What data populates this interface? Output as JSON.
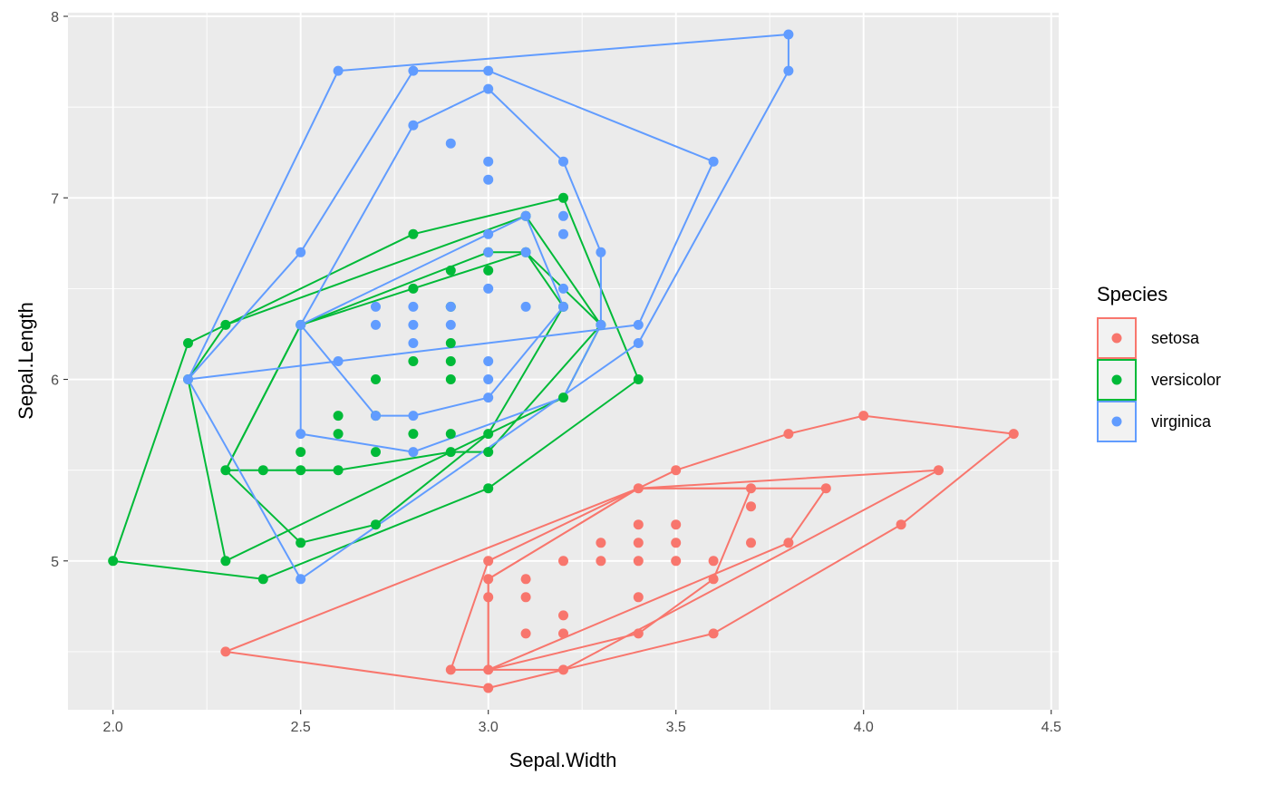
{
  "chart_data": {
    "type": "scatter",
    "title": "",
    "xlabel": "Sepal.Width",
    "ylabel": "Sepal.Length",
    "xlim": [
      1.88,
      4.52
    ],
    "ylim": [
      4.18,
      8.02
    ],
    "x_ticks": [
      2.0,
      2.5,
      3.0,
      3.5,
      4.0,
      4.5
    ],
    "x_tick_labels": [
      "2.0",
      "2.5",
      "3.0",
      "3.5",
      "4.0",
      "4.5"
    ],
    "y_ticks": [
      5,
      6,
      7,
      8
    ],
    "y_tick_labels": [
      "5",
      "6",
      "7",
      "8"
    ],
    "grid": true,
    "legend": {
      "title": "Species",
      "position": "right"
    },
    "series": [
      {
        "name": "setosa",
        "color": "#F8766D",
        "points": [
          [
            2.3,
            4.5
          ],
          [
            2.9,
            4.4
          ],
          [
            3.0,
            4.3
          ],
          [
            3.0,
            4.4
          ],
          [
            3.0,
            4.8
          ],
          [
            3.0,
            4.9
          ],
          [
            3.0,
            5.0
          ],
          [
            3.1,
            4.6
          ],
          [
            3.1,
            4.8
          ],
          [
            3.1,
            4.9
          ],
          [
            3.2,
            4.4
          ],
          [
            3.2,
            4.6
          ],
          [
            3.2,
            4.7
          ],
          [
            3.2,
            5.0
          ],
          [
            3.3,
            5.0
          ],
          [
            3.3,
            5.1
          ],
          [
            3.4,
            4.6
          ],
          [
            3.4,
            4.8
          ],
          [
            3.4,
            5.0
          ],
          [
            3.4,
            5.1
          ],
          [
            3.4,
            5.2
          ],
          [
            3.4,
            5.4
          ],
          [
            3.5,
            5.0
          ],
          [
            3.5,
            5.1
          ],
          [
            3.5,
            5.2
          ],
          [
            3.5,
            5.5
          ],
          [
            3.6,
            4.6
          ],
          [
            3.6,
            4.9
          ],
          [
            3.6,
            5.0
          ],
          [
            3.7,
            5.1
          ],
          [
            3.7,
            5.3
          ],
          [
            3.7,
            5.4
          ],
          [
            3.8,
            5.1
          ],
          [
            3.8,
            5.7
          ],
          [
            3.9,
            5.4
          ],
          [
            4.0,
            5.8
          ],
          [
            4.1,
            5.2
          ],
          [
            4.2,
            5.5
          ],
          [
            4.4,
            5.7
          ]
        ],
        "hulls": [
          [
            [
              2.3,
              4.5
            ],
            [
              3.0,
              4.3
            ],
            [
              3.2,
              4.4
            ],
            [
              3.6,
              4.6
            ],
            [
              4.1,
              5.2
            ],
            [
              4.4,
              5.7
            ],
            [
              4.0,
              5.8
            ],
            [
              3.8,
              5.7
            ],
            [
              3.5,
              5.5
            ],
            [
              3.4,
              5.4
            ]
          ],
          [
            [
              2.9,
              4.4
            ],
            [
              3.2,
              4.4
            ],
            [
              4.2,
              5.5
            ],
            [
              3.4,
              5.4
            ],
            [
              3.0,
              5.0
            ]
          ],
          [
            [
              3.0,
              4.4
            ],
            [
              3.8,
              5.1
            ],
            [
              3.9,
              5.4
            ],
            [
              3.4,
              5.4
            ],
            [
              3.0,
              4.9
            ]
          ],
          [
            [
              3.0,
              4.4
            ],
            [
              3.4,
              4.6
            ],
            [
              3.6,
              4.9
            ],
            [
              3.7,
              5.4
            ],
            [
              3.4,
              5.4
            ],
            [
              3.0,
              4.9
            ]
          ]
        ]
      },
      {
        "name": "versicolor",
        "color": "#00BA38",
        "points": [
          [
            2.0,
            5.0
          ],
          [
            2.2,
            6.0
          ],
          [
            2.2,
            6.2
          ],
          [
            2.3,
            5.0
          ],
          [
            2.3,
            5.5
          ],
          [
            2.3,
            6.3
          ],
          [
            2.4,
            4.9
          ],
          [
            2.4,
            5.5
          ],
          [
            2.5,
            5.1
          ],
          [
            2.5,
            5.5
          ],
          [
            2.5,
            5.6
          ],
          [
            2.5,
            6.3
          ],
          [
            2.6,
            5.5
          ],
          [
            2.6,
            5.7
          ],
          [
            2.6,
            5.8
          ],
          [
            2.7,
            5.2
          ],
          [
            2.7,
            5.6
          ],
          [
            2.7,
            5.8
          ],
          [
            2.7,
            6.0
          ],
          [
            2.8,
            5.7
          ],
          [
            2.8,
            6.1
          ],
          [
            2.8,
            6.5
          ],
          [
            2.8,
            6.8
          ],
          [
            2.9,
            5.6
          ],
          [
            2.9,
            5.7
          ],
          [
            2.9,
            6.0
          ],
          [
            2.9,
            6.1
          ],
          [
            2.9,
            6.2
          ],
          [
            2.9,
            6.4
          ],
          [
            2.9,
            6.6
          ],
          [
            3.0,
            5.4
          ],
          [
            3.0,
            5.6
          ],
          [
            3.0,
            5.7
          ],
          [
            3.0,
            6.6
          ],
          [
            3.0,
            6.7
          ],
          [
            3.1,
            6.7
          ],
          [
            3.1,
            6.9
          ],
          [
            3.2,
            5.9
          ],
          [
            3.2,
            6.4
          ],
          [
            3.2,
            7.0
          ],
          [
            3.3,
            6.3
          ],
          [
            3.4,
            6.0
          ]
        ],
        "hulls": [
          [
            [
              2.0,
              5.0
            ],
            [
              2.4,
              4.9
            ],
            [
              3.0,
              5.4
            ],
            [
              3.4,
              6.0
            ],
            [
              3.2,
              7.0
            ],
            [
              2.8,
              6.8
            ],
            [
              2.2,
              6.2
            ]
          ],
          [
            [
              2.3,
              5.0
            ],
            [
              3.2,
              5.9
            ],
            [
              3.3,
              6.3
            ],
            [
              3.1,
              6.9
            ],
            [
              2.3,
              6.3
            ],
            [
              2.2,
              6.0
            ]
          ],
          [
            [
              2.5,
              5.1
            ],
            [
              2.7,
              5.2
            ],
            [
              3.0,
              5.7
            ],
            [
              3.2,
              6.4
            ],
            [
              3.1,
              6.7
            ],
            [
              2.5,
              6.3
            ],
            [
              2.3,
              5.5
            ]
          ],
          [
            [
              2.3,
              5.5
            ],
            [
              2.6,
              5.5
            ],
            [
              2.9,
              5.6
            ],
            [
              3.0,
              5.6
            ],
            [
              3.3,
              6.3
            ],
            [
              3.1,
              6.7
            ],
            [
              3.0,
              6.7
            ],
            [
              2.5,
              6.3
            ]
          ]
        ]
      },
      {
        "name": "virginica",
        "color": "#619CFF",
        "points": [
          [
            2.2,
            6.0
          ],
          [
            2.5,
            4.9
          ],
          [
            2.5,
            5.7
          ],
          [
            2.5,
            6.3
          ],
          [
            2.5,
            6.7
          ],
          [
            2.6,
            6.1
          ],
          [
            2.6,
            7.7
          ],
          [
            2.7,
            5.8
          ],
          [
            2.7,
            6.3
          ],
          [
            2.7,
            6.4
          ],
          [
            2.8,
            5.6
          ],
          [
            2.8,
            5.8
          ],
          [
            2.8,
            6.2
          ],
          [
            2.8,
            6.3
          ],
          [
            2.8,
            6.4
          ],
          [
            2.8,
            7.4
          ],
          [
            2.8,
            7.7
          ],
          [
            2.9,
            6.3
          ],
          [
            2.9,
            6.4
          ],
          [
            2.9,
            7.3
          ],
          [
            3.0,
            5.9
          ],
          [
            3.0,
            6.0
          ],
          [
            3.0,
            6.1
          ],
          [
            3.0,
            6.5
          ],
          [
            3.0,
            6.7
          ],
          [
            3.0,
            6.8
          ],
          [
            3.0,
            7.1
          ],
          [
            3.0,
            7.2
          ],
          [
            3.0,
            7.6
          ],
          [
            3.0,
            7.7
          ],
          [
            3.1,
            6.4
          ],
          [
            3.1,
            6.7
          ],
          [
            3.1,
            6.9
          ],
          [
            3.2,
            6.4
          ],
          [
            3.2,
            6.5
          ],
          [
            3.2,
            6.8
          ],
          [
            3.2,
            6.9
          ],
          [
            3.2,
            7.2
          ],
          [
            3.3,
            6.3
          ],
          [
            3.3,
            6.7
          ],
          [
            3.4,
            6.2
          ],
          [
            3.4,
            6.3
          ],
          [
            3.6,
            7.2
          ],
          [
            3.8,
            7.7
          ],
          [
            3.8,
            7.9
          ]
        ],
        "hulls": [
          [
            [
              2.2,
              6.0
            ],
            [
              2.5,
              4.9
            ],
            [
              3.4,
              6.2
            ],
            [
              3.8,
              7.7
            ],
            [
              3.8,
              7.9
            ],
            [
              2.6,
              7.7
            ]
          ],
          [
            [
              2.2,
              6.0
            ],
            [
              3.4,
              6.3
            ],
            [
              3.6,
              7.2
            ],
            [
              3.0,
              7.7
            ],
            [
              2.8,
              7.7
            ],
            [
              2.5,
              6.7
            ]
          ],
          [
            [
              2.5,
              5.7
            ],
            [
              2.8,
              5.6
            ],
            [
              3.2,
              5.9
            ],
            [
              3.3,
              6.3
            ],
            [
              3.3,
              6.7
            ],
            [
              3.2,
              7.2
            ],
            [
              3.0,
              7.6
            ],
            [
              2.8,
              7.4
            ],
            [
              2.5,
              6.3
            ]
          ],
          [
            [
              2.7,
              5.8
            ],
            [
              2.8,
              5.8
            ],
            [
              3.0,
              5.9
            ],
            [
              3.2,
              6.4
            ],
            [
              3.1,
              6.9
            ],
            [
              2.5,
              6.3
            ]
          ]
        ]
      }
    ]
  }
}
